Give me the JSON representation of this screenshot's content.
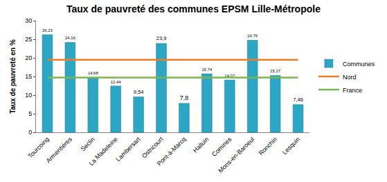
{
  "chart_data": {
    "type": "bar",
    "title": "Taux de pauvreté des communes EPSM Lille-Métropole",
    "y_label": "Taux de pauvreté en %",
    "categories": [
      "Tourcoing",
      "Armentières",
      "Seclin",
      "La Madeleine",
      "Lambersart",
      "Ostricourt",
      "Pont-à-Marcq",
      "Halluin",
      "Comines",
      "Mons-en-Baroeul",
      "Ronchin",
      "Lesquin"
    ],
    "series": [
      {
        "name": "Communes",
        "type": "bar",
        "color": "#2ba6c4",
        "values": [
          26.23,
          24.16,
          14.68,
          12.44,
          9.54,
          23.9,
          7.8,
          15.74,
          14.07,
          24.75,
          15.27,
          7.46
        ],
        "value_labels": [
          "26,23",
          "24,16",
          "14,68",
          "12,44",
          "9,54",
          "23,9",
          "7,8",
          "15,74",
          "14,07",
          "24,75",
          "15,27",
          "7,46"
        ],
        "data_labels": true
      },
      {
        "name": "Nord",
        "type": "line",
        "color": "#f07d22",
        "values": [
          19.5,
          19.5,
          19.5,
          19.5,
          19.5,
          19.5,
          19.5,
          19.5,
          19.5,
          19.5,
          19.5,
          19.5
        ]
      },
      {
        "name": "France",
        "type": "line",
        "color": "#78b84c",
        "values": [
          14.7,
          14.7,
          14.7,
          14.7,
          14.7,
          14.7,
          14.7,
          14.7,
          14.7,
          14.7,
          14.7,
          14.7
        ]
      }
    ],
    "ylim": [
      0,
      30
    ],
    "yticks": [
      0,
      5,
      10,
      15,
      20,
      25,
      30
    ],
    "grid": false,
    "legend": "right"
  }
}
